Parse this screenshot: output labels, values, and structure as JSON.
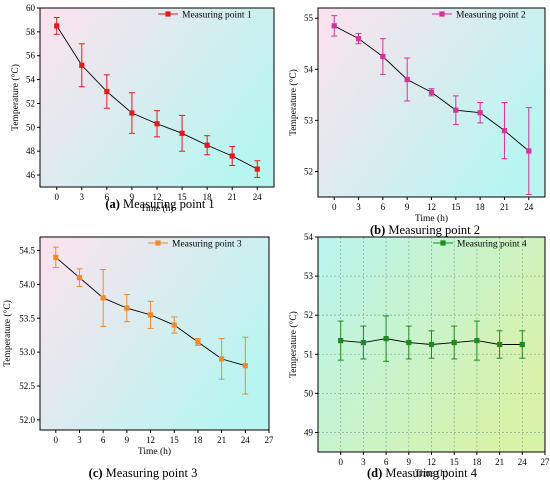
{
  "chart_data": [
    {
      "type": "line",
      "panel": "a",
      "xlabel": "Time (h)",
      "ylabel": "Temperature (°C)",
      "xlim": [
        -2,
        26
      ],
      "ylim": [
        45,
        60
      ],
      "xticks": [
        0,
        3,
        6,
        9,
        12,
        15,
        18,
        21,
        24
      ],
      "xticklabels": [
        "0",
        "3",
        "6",
        "9",
        "12",
        "15",
        "18",
        "21",
        "24"
      ],
      "yticks": [
        46,
        48,
        50,
        52,
        54,
        56,
        58,
        60
      ],
      "yticklabels": [
        "46",
        "48",
        "50",
        "52",
        "54",
        "56",
        "58",
        "60"
      ],
      "grid": false,
      "legend": "top-right",
      "marker": "square",
      "color": "#e31a1c",
      "background_gradient": [
        "#fde2ee",
        "#b9f5f0"
      ],
      "series": [
        {
          "name": "Measuring point 1",
          "x": [
            0,
            3,
            6,
            9,
            12,
            15,
            18,
            21,
            24
          ],
          "y": [
            58.5,
            55.2,
            53.0,
            51.2,
            50.3,
            49.5,
            48.5,
            47.6,
            46.5
          ],
          "err": [
            0.7,
            1.8,
            1.4,
            1.7,
            1.1,
            1.5,
            0.8,
            0.8,
            0.7
          ]
        }
      ],
      "caption": {
        "label": "(a)",
        "text": "Measuring point 1"
      }
    },
    {
      "type": "line",
      "panel": "b",
      "xlabel": "Time (h)",
      "ylabel": "Temperature (°C)",
      "xlim": [
        -2,
        26
      ],
      "ylim": [
        51.5,
        55.2
      ],
      "xticks": [
        0,
        3,
        6,
        9,
        12,
        15,
        18,
        21,
        24
      ],
      "xticklabels": [
        "0",
        "3",
        "6",
        "9",
        "12",
        "15",
        "18",
        "21",
        "24"
      ],
      "yticks": [
        52,
        53,
        54,
        55
      ],
      "yticklabels": [
        "52",
        "53",
        "54",
        "55"
      ],
      "grid": false,
      "legend": "top-right",
      "marker": "square",
      "color": "#d6339a",
      "background_gradient": [
        "#fde2ee",
        "#b9f5f0"
      ],
      "series": [
        {
          "name": "Measuring point 2",
          "x": [
            0,
            3,
            6,
            9,
            12,
            15,
            18,
            21,
            24
          ],
          "y": [
            54.85,
            54.6,
            54.25,
            53.8,
            53.55,
            53.2,
            53.15,
            52.8,
            52.4
          ],
          "err": [
            0.2,
            0.1,
            0.35,
            0.42,
            0.07,
            0.28,
            0.2,
            0.55,
            0.85
          ]
        }
      ],
      "caption": {
        "label": "(b)",
        "text": "Measuring point 2"
      }
    },
    {
      "type": "line",
      "panel": "c",
      "xlabel": "Time (h)",
      "ylabel": "Temperature (°C)",
      "xlim": [
        -2,
        27
      ],
      "ylim": [
        51.85,
        54.7
      ],
      "xticks": [
        0,
        3,
        6,
        9,
        12,
        15,
        18,
        21,
        24,
        27
      ],
      "xticklabels": [
        "0",
        "3",
        "6",
        "9",
        "12",
        "15",
        "18",
        "21",
        "24",
        "27"
      ],
      "yticks": [
        52.0,
        52.5,
        53.0,
        53.5,
        54.0,
        54.5
      ],
      "yticklabels": [
        "52.0",
        "52.5",
        "53.0",
        "53.5",
        "54.0",
        "54.5"
      ],
      "grid": false,
      "legend": "top-right",
      "marker": "square",
      "color": "#f28a2a",
      "background_gradient": [
        "#fde2ee",
        "#b9f5f0"
      ],
      "series": [
        {
          "name": "Measuring point 3",
          "x": [
            0,
            3,
            6,
            9,
            12,
            15,
            18,
            21,
            24
          ],
          "y": [
            54.4,
            54.1,
            53.8,
            53.65,
            53.55,
            53.4,
            53.15,
            52.9,
            52.8
          ],
          "err": [
            0.15,
            0.13,
            0.42,
            0.2,
            0.2,
            0.12,
            0.05,
            0.3,
            0.42
          ]
        }
      ],
      "caption": {
        "label": "(c)",
        "text": "Measuring point 3"
      }
    },
    {
      "type": "line",
      "panel": "d",
      "xlabel": "Time (h)",
      "ylabel": "Temperature (°C)",
      "xlim": [
        -3,
        27
      ],
      "ylim": [
        48.5,
        54
      ],
      "xticks": [
        0,
        3,
        6,
        9,
        12,
        15,
        18,
        21,
        24,
        27
      ],
      "xticklabels": [
        "0",
        "3",
        "6",
        "9",
        "12",
        "15",
        "18",
        "21",
        "24",
        "27"
      ],
      "yticks": [
        49,
        50,
        51,
        52,
        53,
        54
      ],
      "yticklabels": [
        "49",
        "50",
        "51",
        "52",
        "53",
        "54"
      ],
      "grid": true,
      "legend": "top-right",
      "marker": "square",
      "color": "#1f8a1f",
      "background_gradient": [
        "#b9f5f0",
        "#d8f2a8"
      ],
      "series": [
        {
          "name": "Measuring point 4",
          "x": [
            0,
            3,
            6,
            9,
            12,
            15,
            18,
            21,
            24
          ],
          "y": [
            51.35,
            51.3,
            51.4,
            51.3,
            51.25,
            51.3,
            51.35,
            51.25,
            51.25
          ],
          "err": [
            0.5,
            0.42,
            0.58,
            0.42,
            0.35,
            0.42,
            0.5,
            0.35,
            0.35
          ]
        }
      ],
      "caption": {
        "label": "(d)",
        "text": "Measuring point 4"
      }
    }
  ]
}
